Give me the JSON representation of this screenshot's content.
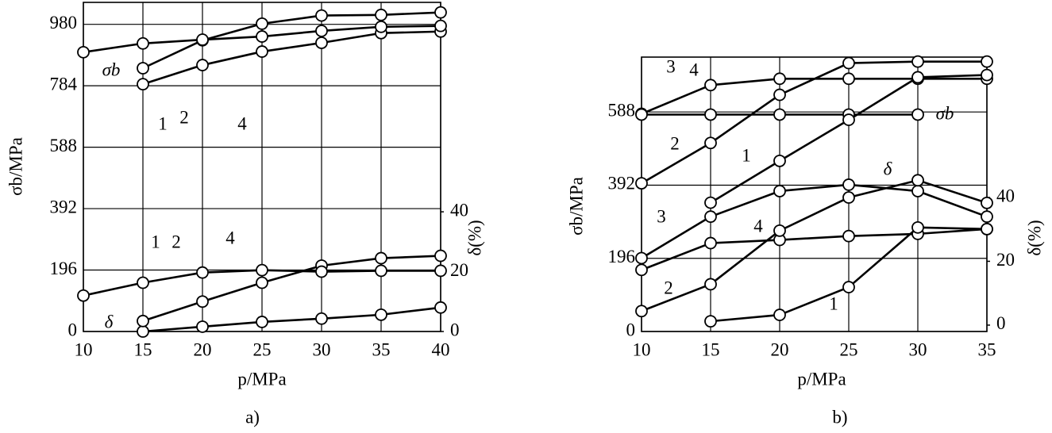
{
  "chart_data": [
    {
      "type": "line",
      "caption": "a)",
      "xlabel": "p/MPa",
      "ylabel": "σb/MPa",
      "y2label": "δ(%)",
      "annotations": [
        "σb",
        "δ"
      ],
      "x": [
        10,
        15,
        20,
        25,
        30,
        35,
        40
      ],
      "xlim": [
        10,
        40
      ],
      "xticks": [
        10,
        15,
        20,
        25,
        30,
        35,
        40
      ],
      "ylim": [
        0,
        1050
      ],
      "yticks": [
        0,
        196,
        392,
        588,
        784,
        980
      ],
      "y2lim": [
        0,
        110
      ],
      "y2ticks": [
        0,
        20,
        40
      ],
      "grid": true,
      "series": [
        {
          "name": "1",
          "color": "#000000",
          "values": [
            null,
            789,
            850,
            893,
            921,
            952,
            957
          ]
        },
        {
          "name": "2",
          "color": "#000000",
          "values": [
            null,
            840,
            929,
            982,
            1008,
            1010,
            1018
          ]
        },
        {
          "name": "4",
          "color": "#000000",
          "values": [
            891,
            919,
            931,
            941,
            959,
            972,
            975
          ]
        },
        {
          "name": "1",
          "color": "#000000",
          "axis": "y2",
          "values": [
            null,
            0,
            1.6,
            3.2,
            4.3,
            5.6,
            8
          ]
        },
        {
          "name": "2",
          "color": "#000000",
          "axis": "y2",
          "values": [
            null,
            3.5,
            10,
            16.3,
            22,
            24.5,
            25.3
          ]
        },
        {
          "name": "4",
          "color": "#000000",
          "axis": "y2",
          "values": [
            12,
            16.3,
            19.7,
            20.5,
            20,
            20.3,
            20.3
          ]
        }
      ]
    },
    {
      "type": "line",
      "caption": "b)",
      "xlabel": "p/MPa",
      "ylabel": "σb/MPa",
      "y2label": "δ(%)",
      "annotations": [
        "σb",
        "δ"
      ],
      "x": [
        10,
        15,
        20,
        25,
        30,
        35
      ],
      "xlim": [
        10,
        35
      ],
      "xticks": [
        10,
        15,
        20,
        25,
        30,
        35
      ],
      "ylim": [
        0,
        735
      ],
      "yticks": [
        0,
        196,
        392,
        588
      ],
      "y2lim": [
        -2,
        84
      ],
      "y2ticks": [
        0,
        20,
        40
      ],
      "grid": true,
      "series": [
        {
          "name": "3",
          "color": "#000000",
          "values": [
            583,
            660,
            677,
            677,
            677,
            677
          ]
        },
        {
          "name": "4",
          "color": "#000000",
          "values": [
            581,
            581,
            581,
            581,
            581,
            null
          ]
        },
        {
          "name": "2",
          "color": "#000000",
          "values": [
            397,
            505,
            634,
            719,
            723,
            723
          ]
        },
        {
          "name": "1",
          "color": "#000000",
          "values": [
            null,
            345,
            457,
            567,
            681,
            687
          ]
        },
        {
          "name": "3",
          "color": "#000000",
          "axis": "y2",
          "values": [
            21,
            34,
            42,
            44,
            42,
            34
          ]
        },
        {
          "name": "4",
          "color": "#000000",
          "axis": "y2",
          "values": [
            17.3,
            25.7,
            26.7,
            27.9,
            28.6,
            30.1
          ]
        },
        {
          "name": "2",
          "color": "#000000",
          "axis": "y2",
          "values": [
            4.4,
            12.8,
            29.6,
            40,
            45.4,
            38.3
          ]
        },
        {
          "name": "1",
          "color": "#000000",
          "axis": "y2",
          "values": [
            null,
            1.2,
            3.2,
            11.9,
            30.6,
            30.1
          ]
        }
      ]
    }
  ]
}
